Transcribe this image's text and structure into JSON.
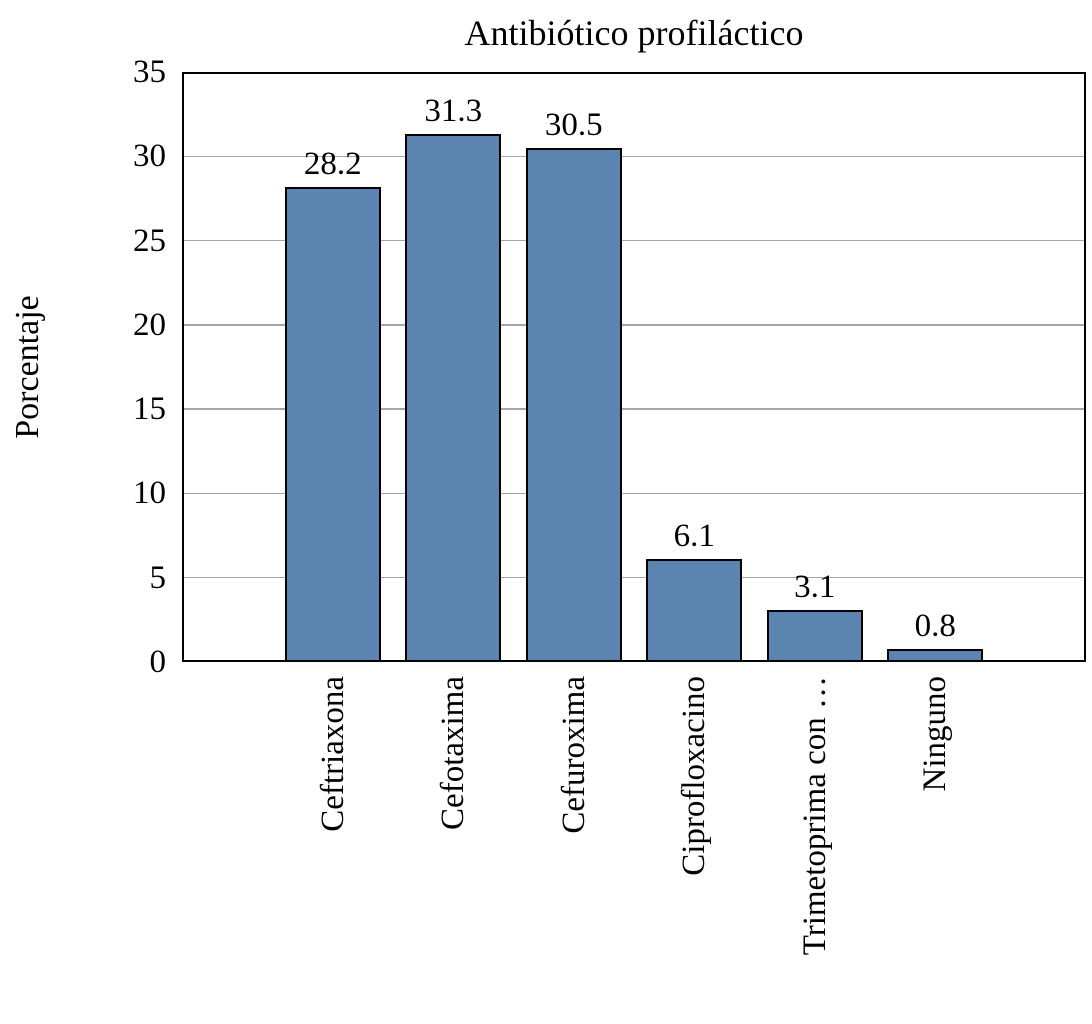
{
  "chart_data": {
    "type": "bar",
    "title": "Antibiótico profiláctico",
    "xlabel": "",
    "ylabel": "Porcentaje",
    "categories": [
      "Ceftriaxona",
      "Cefotaxima",
      "Cefuroxima",
      "Ciprofloxacino",
      "Trimetoprima con …",
      "Ninguno"
    ],
    "values": [
      28.2,
      31.3,
      30.5,
      6.1,
      3.1,
      0.8
    ],
    "data_labels": [
      "28.2",
      "31.3",
      "30.5",
      "6.1",
      "3.1",
      "0.8"
    ],
    "ylim": [
      0,
      35
    ],
    "yticks": [
      0,
      5,
      10,
      15,
      20,
      25,
      30,
      35
    ],
    "grid": true,
    "legend": "none",
    "colors": {
      "bar_fill": "#5B84B1",
      "bar_border": "#000000",
      "gridline": "#A6A6A6",
      "axis_frame": "#000000",
      "text": "#000000",
      "background": "#FFFFFF"
    }
  }
}
